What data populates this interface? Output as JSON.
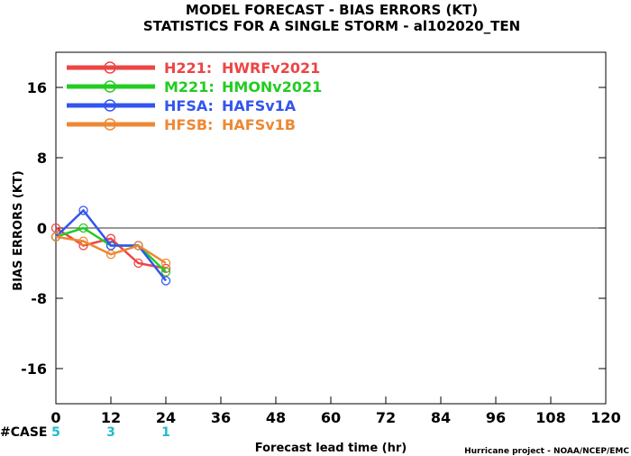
{
  "chart_data": {
    "type": "line",
    "title": "MODEL FORECAST - BIAS ERRORS (KT)",
    "subtitle": "STATISTICS FOR A SINGLE STORM - al102020_TEN",
    "xlabel": "Forecast lead time (hr)",
    "ylabel": "BIAS ERRORS (KT)",
    "xlim": [
      0,
      120
    ],
    "ylim": [
      -20,
      20
    ],
    "x_ticks": [
      0,
      12,
      24,
      36,
      48,
      60,
      72,
      84,
      96,
      108,
      120
    ],
    "y_ticks": [
      -16,
      -8,
      0,
      8,
      16
    ],
    "grid": false,
    "legend_position": "top-left",
    "zero_line": true,
    "series": [
      {
        "label": "H221:",
        "name": "HWRFv2021",
        "color": "#ee4444",
        "x": [
          0,
          6,
          12,
          18,
          24
        ],
        "y": [
          0,
          -2,
          -1.2,
          -4,
          -4.6
        ]
      },
      {
        "label": "M221:",
        "name": "HMONv2021",
        "color": "#22cc22",
        "x": [
          0,
          6,
          12,
          18,
          24
        ],
        "y": [
          -1,
          0,
          -2,
          -2,
          -5
        ]
      },
      {
        "label": "HFSA:",
        "name": "HAFSv1A",
        "color": "#3355ee",
        "x": [
          0,
          6,
          12,
          18,
          24
        ],
        "y": [
          -1,
          2,
          -2,
          -2,
          -6
        ]
      },
      {
        "label": "HFSB:",
        "name": "HAFSv1B",
        "color": "#ee8833",
        "x": [
          0,
          6,
          12,
          18,
          24
        ],
        "y": [
          -1,
          -1.5,
          -3,
          -2,
          -4
        ]
      }
    ],
    "case_label": "#CASE",
    "case_color": "#22bbcc",
    "cases": [
      {
        "x": 0,
        "n": "5"
      },
      {
        "x": 12,
        "n": "3"
      },
      {
        "x": 24,
        "n": "1"
      }
    ]
  },
  "credit": "Hurricane project - NOAA/NCEP/EMC"
}
